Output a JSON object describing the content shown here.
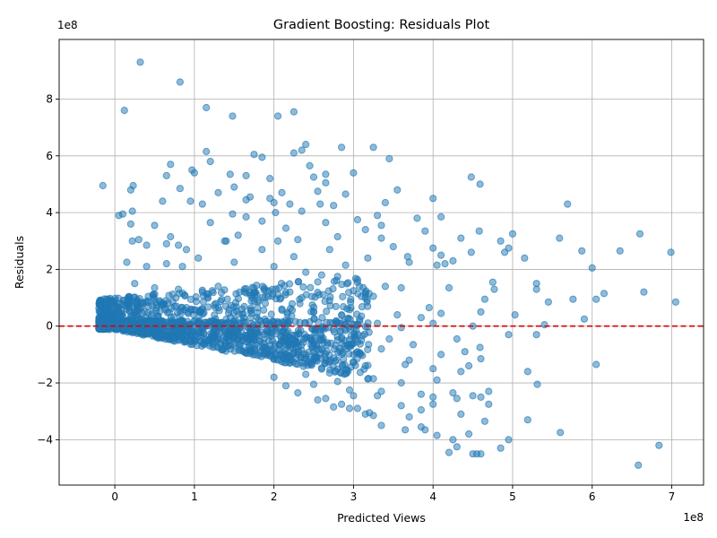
{
  "chart_data": {
    "type": "scatter",
    "title": "Gradient Boosting: Residuals Plot",
    "xlabel": "Predicted Views",
    "ylabel": "Residuals",
    "x_offset_label": "1e8",
    "y_offset_label": "1e8",
    "xlim": [
      -7.0,
      74.0
    ],
    "ylim": [
      -56.0,
      101.0
    ],
    "xticks": [
      0,
      10,
      20,
      30,
      40,
      50,
      60,
      70
    ],
    "xtick_labels": [
      "0",
      "1",
      "2",
      "3",
      "4",
      "5",
      "6",
      "7"
    ],
    "yticks": [
      -40,
      -20,
      0,
      20,
      40,
      60,
      80
    ],
    "ytick_labels": [
      "−4",
      "−2",
      "0",
      "2",
      "4",
      "6",
      "8"
    ],
    "grid": true,
    "reference_line": {
      "y": 0,
      "color": "#e00000",
      "style": "dashed"
    },
    "point_color": "#1f77b4",
    "point_alpha": 0.5,
    "units_note": "x and y values in units of 1e7 (tick labels shown in 1e8)",
    "points": [
      [
        3.2,
        93.0
      ],
      [
        8.2,
        86.0
      ],
      [
        1.2,
        76.0
      ],
      [
        11.5,
        77.0
      ],
      [
        14.8,
        74.0
      ],
      [
        20.5,
        74.0
      ],
      [
        22.5,
        75.5
      ],
      [
        7.0,
        57.0
      ],
      [
        6.5,
        53.0
      ],
      [
        10.0,
        54.0
      ],
      [
        11.5,
        61.5
      ],
      [
        17.5,
        60.5
      ],
      [
        22.5,
        61.0
      ],
      [
        23.5,
        62.0
      ],
      [
        24.0,
        64.0
      ],
      [
        28.5,
        63.0
      ],
      [
        32.5,
        63.0
      ],
      [
        34.5,
        59.0
      ],
      [
        14.5,
        53.5
      ],
      [
        16.5,
        53.0
      ],
      [
        19.5,
        52.0
      ],
      [
        25.0,
        52.5
      ],
      [
        26.5,
        53.5
      ],
      [
        26.5,
        50.5
      ],
      [
        25.5,
        47.5
      ],
      [
        35.5,
        48.0
      ],
      [
        44.8,
        52.5
      ],
      [
        45.9,
        50.0
      ],
      [
        -1.5,
        49.5
      ],
      [
        2.0,
        48.0
      ],
      [
        2.3,
        49.5
      ],
      [
        8.2,
        48.5
      ],
      [
        9.5,
        44.0
      ],
      [
        15.0,
        49.0
      ],
      [
        16.5,
        44.5
      ],
      [
        17.0,
        45.5
      ],
      [
        19.5,
        45.0
      ],
      [
        20.0,
        43.5
      ],
      [
        22.0,
        43.0
      ],
      [
        25.8,
        43.0
      ],
      [
        40.0,
        45.0
      ],
      [
        41.0,
        38.5
      ],
      [
        56.9,
        43.0
      ],
      [
        0.5,
        39.0
      ],
      [
        1.0,
        39.5
      ],
      [
        2.2,
        40.5
      ],
      [
        2.0,
        36.0
      ],
      [
        14.8,
        39.5
      ],
      [
        16.5,
        38.5
      ],
      [
        18.5,
        37.0
      ],
      [
        20.2,
        40.0
      ],
      [
        30.5,
        37.5
      ],
      [
        33.0,
        39.0
      ],
      [
        33.5,
        35.5
      ],
      [
        38.0,
        38.0
      ],
      [
        45.8,
        33.5
      ],
      [
        50.0,
        32.5
      ],
      [
        55.9,
        31.0
      ],
      [
        66.0,
        32.5
      ],
      [
        3.0,
        30.5
      ],
      [
        2.2,
        30.0
      ],
      [
        4.0,
        28.5
      ],
      [
        6.5,
        29.0
      ],
      [
        8.0,
        28.5
      ],
      [
        9.0,
        27.0
      ],
      [
        13.8,
        30.0
      ],
      [
        14.0,
        30.0
      ],
      [
        18.5,
        27.0
      ],
      [
        20.5,
        30.0
      ],
      [
        22.5,
        24.5
      ],
      [
        27.0,
        27.0
      ],
      [
        29.0,
        21.5
      ],
      [
        31.8,
        24.0
      ],
      [
        33.5,
        31.0
      ],
      [
        36.8,
        24.5
      ],
      [
        40.0,
        27.5
      ],
      [
        42.5,
        23.0
      ],
      [
        44.8,
        26.0
      ],
      [
        49.0,
        26.0
      ],
      [
        49.5,
        27.5
      ],
      [
        58.7,
        26.5
      ],
      [
        63.5,
        26.5
      ],
      [
        69.9,
        26.0
      ],
      [
        1.5,
        22.5
      ],
      [
        4.0,
        21.0
      ],
      [
        6.5,
        22.0
      ],
      [
        8.5,
        21.0
      ],
      [
        10.5,
        24.0
      ],
      [
        15.0,
        22.5
      ],
      [
        20.0,
        21.0
      ],
      [
        24.0,
        19.0
      ],
      [
        26.0,
        18.0
      ],
      [
        28.0,
        17.5
      ],
      [
        30.5,
        15.5
      ],
      [
        34.0,
        14.0
      ],
      [
        37.0,
        22.5
      ],
      [
        40.5,
        21.5
      ],
      [
        41.5,
        22.0
      ],
      [
        42.0,
        13.5
      ],
      [
        47.5,
        15.5
      ],
      [
        53.0,
        15.0
      ],
      [
        61.5,
        11.5
      ],
      [
        66.5,
        12.0
      ],
      [
        70.5,
        8.5
      ],
      [
        2.5,
        15.0
      ],
      [
        5.0,
        13.5
      ],
      [
        8.0,
        13.0
      ],
      [
        11.0,
        12.0
      ],
      [
        13.0,
        14.0
      ],
      [
        17.0,
        11.0
      ],
      [
        19.0,
        12.5
      ],
      [
        22.0,
        12.0
      ],
      [
        23.5,
        10.0
      ],
      [
        27.0,
        9.0
      ],
      [
        30.0,
        12.5
      ],
      [
        32.5,
        10.5
      ],
      [
        36.0,
        13.5
      ],
      [
        39.5,
        6.5
      ],
      [
        46.5,
        9.5
      ],
      [
        47.7,
        13.0
      ],
      [
        53.0,
        13.0
      ],
      [
        54.5,
        8.5
      ],
      [
        57.6,
        9.5
      ],
      [
        60.5,
        9.5
      ],
      [
        1.5,
        6.0
      ],
      [
        3.5,
        8.0
      ],
      [
        6.0,
        7.5
      ],
      [
        9.0,
        6.5
      ],
      [
        12.5,
        7.5
      ],
      [
        16.0,
        6.0
      ],
      [
        18.0,
        8.5
      ],
      [
        21.0,
        6.0
      ],
      [
        25.0,
        5.0
      ],
      [
        28.5,
        4.0
      ],
      [
        31.0,
        3.5
      ],
      [
        35.5,
        4.0
      ],
      [
        38.5,
        3.0
      ],
      [
        41.0,
        4.5
      ],
      [
        46.0,
        5.0
      ],
      [
        50.3,
        4.0
      ],
      [
        54.0,
        0.5
      ],
      [
        59.0,
        2.5
      ],
      [
        4.5,
        2.0
      ],
      [
        10.5,
        1.5
      ],
      [
        15.0,
        2.0
      ],
      [
        19.5,
        1.0
      ],
      [
        24.5,
        1.5
      ],
      [
        29.0,
        0.5
      ],
      [
        33.0,
        1.0
      ],
      [
        36.0,
        -0.5
      ],
      [
        40.0,
        1.0
      ],
      [
        45.0,
        0.0
      ],
      [
        53.0,
        -3.0
      ],
      [
        28.5,
        -4.5
      ],
      [
        31.0,
        -5.0
      ],
      [
        34.5,
        -4.5
      ],
      [
        37.5,
        -6.5
      ],
      [
        43.0,
        -4.5
      ],
      [
        49.5,
        -3.0
      ],
      [
        26.0,
        -8.0
      ],
      [
        30.5,
        -9.0
      ],
      [
        33.5,
        -8.0
      ],
      [
        37.0,
        -12.0
      ],
      [
        41.0,
        -10.0
      ],
      [
        44.0,
        -9.0
      ],
      [
        45.9,
        -7.5
      ],
      [
        60.5,
        -13.5
      ],
      [
        22.0,
        -13.0
      ],
      [
        27.0,
        -16.5
      ],
      [
        31.5,
        -14.0
      ],
      [
        36.5,
        -13.5
      ],
      [
        40.0,
        -15.0
      ],
      [
        44.5,
        -14.0
      ],
      [
        46.0,
        -11.5
      ],
      [
        51.9,
        -16.0
      ],
      [
        20.0,
        -18.0
      ],
      [
        24.0,
        -17.0
      ],
      [
        28.0,
        -19.5
      ],
      [
        32.5,
        -18.5
      ],
      [
        36.0,
        -20.0
      ],
      [
        40.5,
        -19.0
      ],
      [
        43.5,
        -16.0
      ],
      [
        53.1,
        -20.5
      ],
      [
        21.5,
        -21.0
      ],
      [
        25.0,
        -20.5
      ],
      [
        29.5,
        -22.5
      ],
      [
        33.5,
        -23.0
      ],
      [
        38.5,
        -24.0
      ],
      [
        42.5,
        -23.5
      ],
      [
        45.0,
        -24.5
      ],
      [
        47.0,
        -23.0
      ],
      [
        23.0,
        -23.5
      ],
      [
        26.5,
        -25.5
      ],
      [
        30.0,
        -24.5
      ],
      [
        33.0,
        -24.5
      ],
      [
        40.0,
        -25.0
      ],
      [
        43.0,
        -25.5
      ],
      [
        46.0,
        -25.0
      ],
      [
        25.5,
        -26.0
      ],
      [
        28.5,
        -27.5
      ],
      [
        30.5,
        -29.0
      ],
      [
        32.0,
        -30.5
      ],
      [
        36.0,
        -28.0
      ],
      [
        38.5,
        -29.5
      ],
      [
        40.0,
        -27.5
      ],
      [
        47.0,
        -27.5
      ],
      [
        27.5,
        -28.5
      ],
      [
        29.5,
        -29.0
      ],
      [
        31.5,
        -31.0
      ],
      [
        32.5,
        -31.5
      ],
      [
        37.0,
        -32.0
      ],
      [
        43.5,
        -31.0
      ],
      [
        46.5,
        -33.5
      ],
      [
        51.9,
        -33.0
      ],
      [
        36.5,
        -36.5
      ],
      [
        39.0,
        -36.5
      ],
      [
        40.5,
        -38.5
      ],
      [
        42.5,
        -40.0
      ],
      [
        43.0,
        -42.5
      ],
      [
        44.5,
        -38.0
      ],
      [
        49.5,
        -40.0
      ],
      [
        56.0,
        -37.5
      ],
      [
        45.0,
        -45.0
      ],
      [
        46.0,
        -45.0
      ],
      [
        48.5,
        -43.0
      ],
      [
        65.8,
        -49.0
      ],
      [
        68.4,
        -42.0
      ],
      [
        45.5,
        -45.0
      ],
      [
        42.0,
        -44.5
      ],
      [
        38.5,
        -35.5
      ],
      [
        33.5,
        -35.0
      ],
      [
        9.7,
        55.0
      ],
      [
        12.0,
        58.0
      ],
      [
        18.5,
        59.5
      ],
      [
        24.5,
        56.5
      ],
      [
        30.0,
        54.0
      ],
      [
        13.0,
        47.0
      ],
      [
        21.0,
        47.0
      ],
      [
        29.0,
        46.5
      ],
      [
        6.0,
        44.0
      ],
      [
        11.0,
        43.0
      ],
      [
        23.5,
        40.5
      ],
      [
        27.5,
        42.5
      ],
      [
        34.0,
        43.5
      ],
      [
        5.0,
        35.5
      ],
      [
        12.0,
        36.5
      ],
      [
        21.5,
        34.5
      ],
      [
        26.5,
        36.5
      ],
      [
        31.5,
        34.0
      ],
      [
        39.0,
        33.5
      ],
      [
        43.5,
        31.0
      ],
      [
        48.5,
        30.0
      ],
      [
        7.0,
        31.5
      ],
      [
        15.5,
        32.0
      ],
      [
        23.0,
        30.5
      ],
      [
        28.0,
        31.5
      ],
      [
        35.0,
        28.0
      ],
      [
        41.0,
        25.0
      ],
      [
        51.5,
        24.0
      ],
      [
        60.0,
        20.5
      ]
    ],
    "dense_band": {
      "x_min": -2,
      "x_max": 32,
      "y_hint": "main cloud near y=0, lower edge y ≈ -0.55·x"
    }
  }
}
